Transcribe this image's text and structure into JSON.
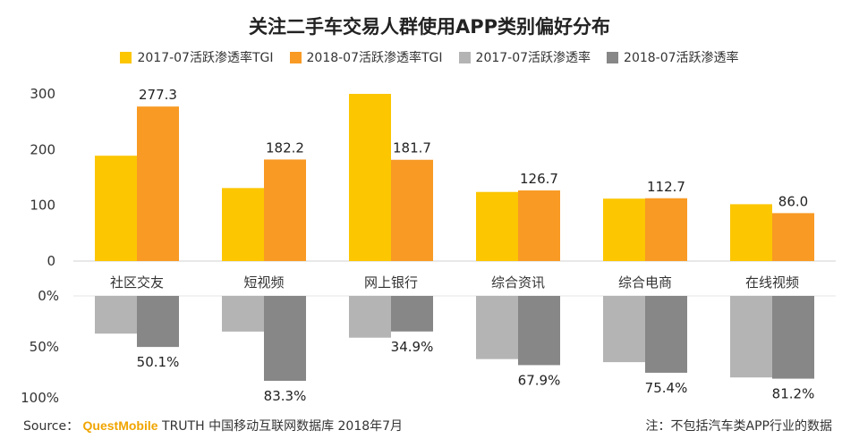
{
  "title": "关注二手车交易人群使用APP类别偏好分布",
  "colors": {
    "tgi_2017": "#fcc600",
    "tgi_2018": "#f89a24",
    "pen_2017": "#b4b4b4",
    "pen_2018": "#878787"
  },
  "chart_data": [
    {
      "type": "bar",
      "categories": [
        "社区交友",
        "短视频",
        "网上银行",
        "综合资讯",
        "综合电商",
        "在线视频"
      ],
      "series": [
        {
          "name": "2017-07活跃渗透率TGI",
          "values": [
            189,
            131,
            300,
            124,
            112,
            102
          ]
        },
        {
          "name": "2018-07活跃渗透率TGI",
          "values": [
            277.3,
            182.2,
            181.7,
            126.7,
            112.7,
            86.0
          ],
          "labels": [
            "277.3",
            "182.2",
            "181.7",
            "126.7",
            "112.7",
            "86.0"
          ]
        }
      ],
      "ylim": [
        0,
        300
      ],
      "yticks": [
        "0",
        "100",
        "200",
        "300"
      ]
    },
    {
      "type": "bar",
      "orientation": "downward",
      "categories": [
        "社区交友",
        "短视频",
        "网上银行",
        "综合资讯",
        "综合电商",
        "在线视频"
      ],
      "series": [
        {
          "name": "2017-07活跃渗透率",
          "values": [
            37,
            35,
            41,
            62,
            65,
            80
          ]
        },
        {
          "name": "2018-07活跃渗透率",
          "values": [
            50.1,
            83.3,
            34.9,
            67.9,
            75.4,
            81.2
          ],
          "labels": [
            "50.1%",
            "83.3%",
            "34.9%",
            "67.9%",
            "75.4%",
            "81.2%"
          ]
        }
      ],
      "ylim": [
        0,
        100
      ],
      "yticks": [
        "0%",
        "50%",
        "100%"
      ]
    }
  ],
  "footer": {
    "source_label": "Source：",
    "brand": "QuestMobile",
    "source_text": "TRUTH 中国移动互联网数据库 2018年7月",
    "note": "注：不包括汽车类APP行业的数据"
  }
}
